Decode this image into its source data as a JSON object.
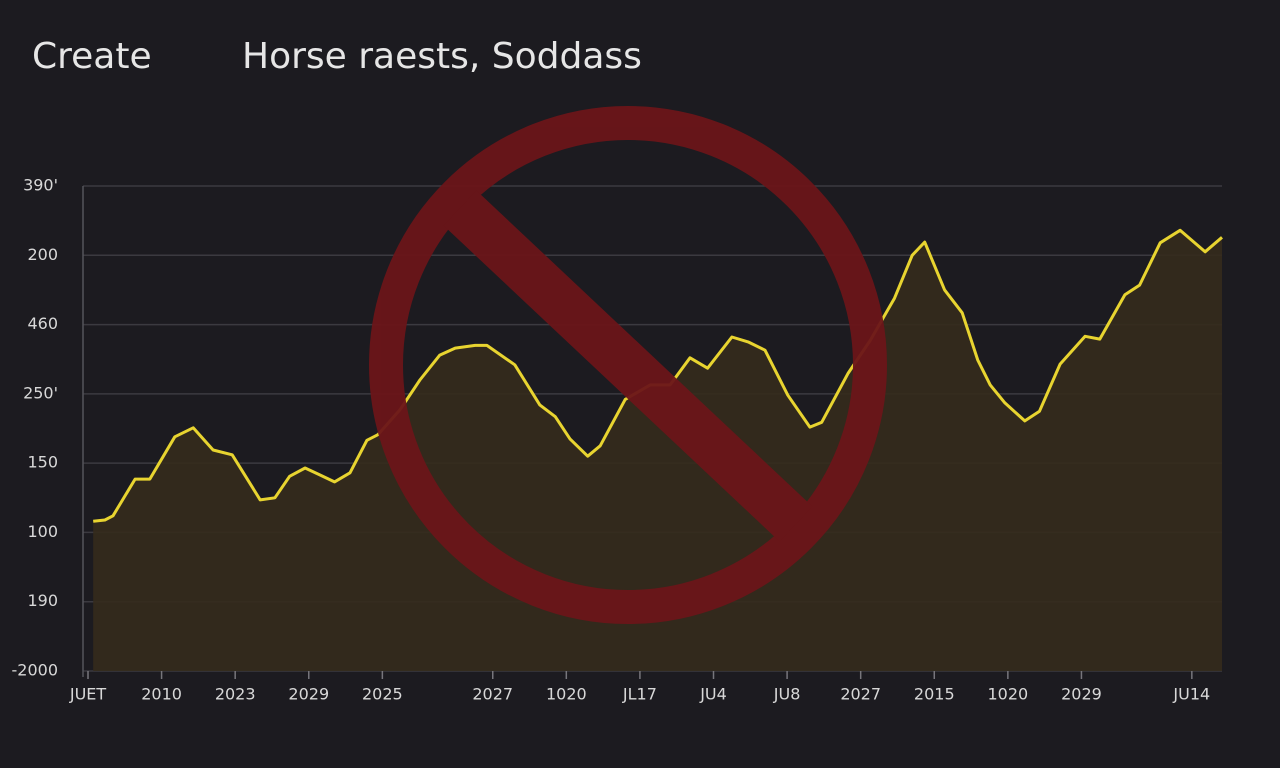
{
  "header": {
    "action": "Create"
  },
  "chart_data": {
    "type": "line",
    "title": "Horse raests, Soddass",
    "color": "#e8d430",
    "fill": "#352b1c",
    "grid": true,
    "xlim": [
      0,
      15.41
    ],
    "ylim": [
      0,
      7
    ],
    "yticks": [
      {
        "value": 0,
        "label": "-2000"
      },
      {
        "value": 1,
        "label": "190"
      },
      {
        "value": 2,
        "label": "100"
      },
      {
        "value": 3,
        "label": "150"
      },
      {
        "value": 4,
        "label": "250'"
      },
      {
        "value": 5,
        "label": "460"
      },
      {
        "value": 6,
        "label": "200"
      },
      {
        "value": 7,
        "label": "390'"
      }
    ],
    "xticks": [
      {
        "value": 0,
        "label": "JUET"
      },
      {
        "value": 1,
        "label": "2010"
      },
      {
        "value": 2,
        "label": "2023"
      },
      {
        "value": 3,
        "label": "2029"
      },
      {
        "value": 4,
        "label": "2025"
      },
      {
        "value": 5.5,
        "label": "2027"
      },
      {
        "value": 6.5,
        "label": "1020"
      },
      {
        "value": 7.5,
        "label": "JL17"
      },
      {
        "value": 8.5,
        "label": "JU4"
      },
      {
        "value": 9.5,
        "label": "JU8"
      },
      {
        "value": 10.5,
        "label": "2027"
      },
      {
        "value": 11.5,
        "label": "2015"
      },
      {
        "value": 12.5,
        "label": "1020"
      },
      {
        "value": 13.5,
        "label": "2029"
      },
      {
        "value": 15,
        "label": "JU14"
      }
    ],
    "x": [
      0.07,
      0.23,
      0.34,
      0.64,
      0.84,
      1.18,
      1.43,
      1.7,
      1.96,
      2.34,
      2.54,
      2.74,
      2.95,
      3.15,
      3.35,
      3.56,
      3.79,
      3.94,
      4.24,
      4.51,
      4.78,
      4.99,
      5.26,
      5.42,
      5.8,
      6.14,
      6.35,
      6.55,
      6.79,
      6.96,
      7.3,
      7.64,
      7.91,
      8.18,
      8.42,
      8.75,
      8.97,
      9.2,
      9.51,
      9.81,
      9.97,
      10.33,
      10.63,
      10.96,
      11.2,
      11.37,
      11.64,
      11.88,
      12.09,
      12.26,
      12.46,
      12.73,
      12.93,
      13.21,
      13.55,
      13.75,
      14.09,
      14.29,
      14.57,
      14.84,
      15.18,
      15.41
    ],
    "values": [
      2.16,
      2.18,
      2.24,
      2.77,
      2.77,
      3.38,
      3.51,
      3.19,
      3.12,
      2.47,
      2.5,
      2.81,
      2.93,
      2.83,
      2.73,
      2.86,
      3.33,
      3.41,
      3.77,
      4.2,
      4.56,
      4.66,
      4.7,
      4.7,
      4.42,
      3.84,
      3.67,
      3.35,
      3.1,
      3.25,
      3.92,
      4.13,
      4.13,
      4.52,
      4.37,
      4.82,
      4.75,
      4.63,
      3.98,
      3.52,
      3.59,
      4.3,
      4.77,
      5.38,
      6.0,
      6.19,
      5.5,
      5.17,
      4.49,
      4.13,
      3.87,
      3.61,
      3.75,
      4.43,
      4.83,
      4.79,
      5.43,
      5.57,
      6.18,
      6.36,
      6.05,
      6.26
    ]
  }
}
